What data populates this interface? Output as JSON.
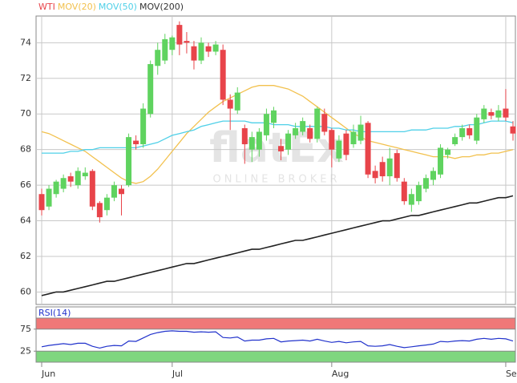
{
  "chart_data": [
    {
      "type": "candlestick",
      "name": "WTI",
      "color_up": "#5fd35f",
      "color_down": "#e8444a",
      "watermark": [
        "flatEx",
        "ONLINE BROKER"
      ],
      "categories": [
        "Jun",
        null,
        null,
        null,
        null,
        null,
        null,
        null,
        null,
        null,
        null,
        null,
        null,
        null,
        null,
        null,
        null,
        null,
        "Jul",
        null,
        null,
        null,
        null,
        null,
        null,
        null,
        null,
        null,
        null,
        null,
        null,
        null,
        null,
        null,
        null,
        null,
        null,
        null,
        null,
        null,
        "Aug",
        null,
        null,
        null,
        null,
        null,
        null,
        null,
        null,
        null,
        null,
        null,
        null,
        null,
        null,
        null,
        null,
        null,
        null,
        null,
        null,
        null,
        null,
        null,
        "Sep",
        null
      ],
      "open": [
        65.5,
        64.8,
        65.5,
        65.8,
        66.5,
        66.0,
        66.5,
        66.8,
        65.0,
        64.6,
        65.3,
        65.8,
        66.0,
        68.5,
        68.3,
        70.0,
        72.7,
        73.0,
        73.6,
        75.0,
        74.1,
        73.8,
        73.0,
        73.8,
        73.5,
        73.6,
        70.8,
        70.2,
        69.2,
        68.0,
        68.0,
        68.8,
        69.5,
        68.2,
        68.0,
        68.8,
        69.0,
        69.2,
        68.6,
        70.0,
        69.1,
        67.5,
        68.9,
        68.3,
        68.5,
        69.5,
        66.8,
        67.3,
        66.5,
        67.8,
        66.2,
        64.9,
        65.1,
        65.8,
        66.3,
        66.6,
        67.7,
        68.3,
        68.7,
        69.2,
        68.5,
        69.7,
        70.1,
        69.8,
        70.3,
        69.3
      ],
      "high": [
        65.8,
        66.0,
        66.3,
        66.6,
        66.7,
        67.0,
        67.0,
        66.9,
        65.1,
        65.5,
        66.2,
        66.0,
        68.9,
        68.8,
        70.6,
        73.0,
        74.0,
        74.5,
        74.4,
        75.2,
        74.6,
        74.1,
        74.3,
        74.0,
        74.1,
        73.9,
        71.1,
        71.5,
        69.4,
        69.0,
        69.2,
        70.3,
        70.4,
        68.6,
        69.1,
        69.5,
        69.8,
        69.4,
        70.4,
        70.3,
        69.2,
        68.8,
        69.1,
        69.4,
        69.9,
        69.6,
        67.1,
        67.6,
        68.1,
        68.0,
        66.4,
        65.8,
        66.2,
        66.6,
        67.0,
        68.3,
        68.1,
        68.9,
        69.4,
        69.4,
        70.0,
        70.5,
        70.3,
        70.5,
        71.4,
        69.6
      ],
      "low": [
        64.3,
        64.6,
        65.3,
        65.6,
        65.9,
        65.8,
        66.3,
        64.6,
        63.9,
        64.3,
        65.1,
        64.3,
        65.9,
        68.0,
        68.1,
        69.8,
        72.2,
        72.8,
        73.3,
        73.3,
        73.4,
        72.5,
        72.8,
        73.2,
        73.3,
        70.5,
        69.1,
        70.0,
        67.2,
        67.3,
        67.6,
        68.5,
        69.2,
        67.4,
        67.7,
        68.6,
        68.8,
        68.4,
        68.4,
        68.8,
        67.0,
        67.3,
        67.4,
        68.1,
        68.3,
        66.4,
        66.1,
        66.2,
        66.0,
        66.2,
        64.9,
        64.5,
        64.9,
        65.6,
        66.0,
        66.4,
        67.5,
        68.2,
        68.5,
        68.6,
        68.3,
        69.5,
        69.7,
        69.6,
        69.6,
        68.5
      ],
      "close": [
        64.6,
        65.8,
        66.2,
        66.4,
        66.2,
        66.8,
        66.7,
        64.8,
        64.2,
        65.3,
        66.0,
        65.5,
        68.7,
        68.3,
        70.3,
        72.8,
        73.6,
        74.2,
        74.3,
        73.9,
        74.0,
        73.0,
        74.0,
        73.5,
        73.9,
        70.8,
        70.3,
        71.2,
        68.3,
        68.7,
        69.0,
        70.0,
        70.2,
        67.9,
        68.9,
        69.2,
        69.6,
        68.6,
        70.3,
        69.0,
        68.0,
        68.5,
        67.7,
        69.0,
        69.4,
        66.6,
        66.4,
        66.5,
        67.5,
        66.4,
        65.1,
        65.5,
        66.0,
        66.4,
        66.8,
        68.1,
        68.0,
        68.7,
        69.2,
        68.8,
        69.8,
        70.3,
        69.9,
        70.2,
        69.8,
        68.9
      ],
      "series": [
        {
          "name": "MOV(20)",
          "color": "#f2c14e",
          "values": [
            69.0,
            68.9,
            68.7,
            68.5,
            68.3,
            68.1,
            67.9,
            67.6,
            67.3,
            67.0,
            66.7,
            66.4,
            66.2,
            66.1,
            66.2,
            66.5,
            66.9,
            67.4,
            67.9,
            68.4,
            68.9,
            69.3,
            69.7,
            70.1,
            70.4,
            70.7,
            70.9,
            71.1,
            71.3,
            71.5,
            71.6,
            71.6,
            71.6,
            71.5,
            71.4,
            71.2,
            71.0,
            70.7,
            70.4,
            70.1,
            69.8,
            69.5,
            69.2,
            68.9,
            68.7,
            68.5,
            68.4,
            68.3,
            68.2,
            68.1,
            68.0,
            67.9,
            67.8,
            67.7,
            67.6,
            67.6,
            67.6,
            67.5,
            67.6,
            67.6,
            67.7,
            67.7,
            67.8,
            67.8,
            67.9,
            68.0
          ]
        },
        {
          "name": "MOV(50)",
          "color": "#4fd0e8",
          "values": [
            67.8,
            67.8,
            67.8,
            67.8,
            67.9,
            67.9,
            68.0,
            68.0,
            68.1,
            68.1,
            68.1,
            68.1,
            68.1,
            68.1,
            68.2,
            68.3,
            68.4,
            68.6,
            68.8,
            68.9,
            69.0,
            69.1,
            69.3,
            69.4,
            69.5,
            69.6,
            69.6,
            69.6,
            69.6,
            69.5,
            69.5,
            69.5,
            69.4,
            69.4,
            69.4,
            69.3,
            69.3,
            69.3,
            69.3,
            69.3,
            69.2,
            69.2,
            69.1,
            69.1,
            69.0,
            69.0,
            69.0,
            69.0,
            69.0,
            69.0,
            69.0,
            69.1,
            69.1,
            69.1,
            69.2,
            69.2,
            69.2,
            69.3,
            69.3,
            69.4,
            69.4,
            69.5,
            69.6,
            69.6,
            69.6,
            69.5
          ]
        },
        {
          "name": "MOV(200)",
          "color": "#222222",
          "values": [
            59.8,
            59.9,
            60.0,
            60.0,
            60.1,
            60.2,
            60.3,
            60.4,
            60.5,
            60.6,
            60.6,
            60.7,
            60.8,
            60.9,
            61.0,
            61.1,
            61.2,
            61.3,
            61.4,
            61.5,
            61.6,
            61.6,
            61.7,
            61.8,
            61.9,
            62.0,
            62.1,
            62.2,
            62.3,
            62.4,
            62.4,
            62.5,
            62.6,
            62.7,
            62.8,
            62.9,
            62.9,
            63.0,
            63.1,
            63.2,
            63.3,
            63.4,
            63.5,
            63.6,
            63.7,
            63.8,
            63.9,
            64.0,
            64.0,
            64.1,
            64.2,
            64.3,
            64.3,
            64.4,
            64.5,
            64.6,
            64.7,
            64.8,
            64.9,
            65.0,
            65.0,
            65.1,
            65.2,
            65.3,
            65.3,
            65.4
          ]
        }
      ],
      "ylim": [
        59.3,
        75.5
      ],
      "yticks": [
        60,
        62,
        64,
        66,
        68,
        70,
        72,
        74
      ],
      "grid": true
    },
    {
      "type": "line",
      "name": "RSI(14)",
      "color": "#2233cc",
      "values": [
        35,
        38,
        40,
        42,
        40,
        43,
        43,
        36,
        32,
        36,
        38,
        37,
        48,
        47,
        55,
        63,
        67,
        70,
        71,
        70,
        70,
        68,
        69,
        68,
        69,
        56,
        55,
        57,
        48,
        50,
        50,
        53,
        54,
        46,
        48,
        49,
        50,
        48,
        52,
        48,
        45,
        47,
        44,
        46,
        47,
        37,
        36,
        37,
        40,
        36,
        33,
        35,
        37,
        39,
        41,
        47,
        46,
        48,
        49,
        48,
        52,
        54,
        52,
        54,
        53,
        48
      ],
      "bands": [
        {
          "range": [
            75,
            100
          ],
          "color": "#f07878"
        },
        {
          "range": [
            0,
            25
          ],
          "color": "#7fd67f"
        }
      ],
      "ylim": [
        0,
        100
      ],
      "yticks": [
        25,
        75
      ]
    }
  ]
}
